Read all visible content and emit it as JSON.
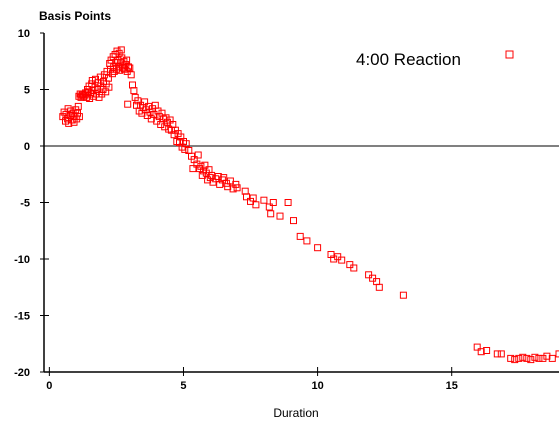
{
  "chart_data": {
    "type": "scatter",
    "title": "",
    "xlabel": "Duration",
    "ylabel": "Basis Points",
    "xlim": [
      -0.2,
      19
    ],
    "ylim": [
      -20,
      10
    ],
    "x_ticks": [
      0,
      5,
      10,
      15
    ],
    "y_ticks": [
      10,
      5,
      0,
      -5,
      -10,
      -15,
      -20
    ],
    "grid": false,
    "zero_line": true,
    "legend": {
      "position": "top-right",
      "entries": [
        "4:00 Reaction"
      ]
    },
    "series": [
      {
        "name": "4:00 Reaction",
        "color": "#ff0000",
        "marker": "open-square",
        "points": [
          [
            0.5,
            2.6
          ],
          [
            0.55,
            3.0
          ],
          [
            0.6,
            2.2
          ],
          [
            0.62,
            2.8
          ],
          [
            0.68,
            2.4
          ],
          [
            0.7,
            3.3
          ],
          [
            0.72,
            2.0
          ],
          [
            0.78,
            2.7
          ],
          [
            0.8,
            3.1
          ],
          [
            0.85,
            2.3
          ],
          [
            0.88,
            2.9
          ],
          [
            0.92,
            2.1
          ],
          [
            0.95,
            2.6
          ],
          [
            0.98,
            3.2
          ],
          [
            1.02,
            2.4
          ],
          [
            1.05,
            2.9
          ],
          [
            1.08,
            3.5
          ],
          [
            1.1,
            4.4
          ],
          [
            1.12,
            2.6
          ],
          [
            1.15,
            4.6
          ],
          [
            1.18,
            4.3
          ],
          [
            1.22,
            4.5
          ],
          [
            1.25,
            4.6
          ],
          [
            1.28,
            4.4
          ],
          [
            1.32,
            4.5
          ],
          [
            1.35,
            4.7
          ],
          [
            1.38,
            4.3
          ],
          [
            1.42,
            5.0
          ],
          [
            1.45,
            4.8
          ],
          [
            1.48,
            5.3
          ],
          [
            1.5,
            4.2
          ],
          [
            1.55,
            4.6
          ],
          [
            1.58,
            5.5
          ],
          [
            1.6,
            5.8
          ],
          [
            1.62,
            4.9
          ],
          [
            1.65,
            4.4
          ],
          [
            1.7,
            5.2
          ],
          [
            1.72,
            5.9
          ],
          [
            1.75,
            4.6
          ],
          [
            1.8,
            5.0
          ],
          [
            1.82,
            5.6
          ],
          [
            1.85,
            4.3
          ],
          [
            1.9,
            6.1
          ],
          [
            1.92,
            5.3
          ],
          [
            1.95,
            4.6
          ],
          [
            2.0,
            5.0
          ],
          [
            2.02,
            5.7
          ],
          [
            2.05,
            6.3
          ],
          [
            2.1,
            4.8
          ],
          [
            2.12,
            5.5
          ],
          [
            2.15,
            6.6
          ],
          [
            2.2,
            6.0
          ],
          [
            2.22,
            5.2
          ],
          [
            2.25,
            7.3
          ],
          [
            2.28,
            6.8
          ],
          [
            2.3,
            7.6
          ],
          [
            2.35,
            6.4
          ],
          [
            2.38,
            7.9
          ],
          [
            2.4,
            7.0
          ],
          [
            2.42,
            6.6
          ],
          [
            2.45,
            8.1
          ],
          [
            2.48,
            7.4
          ],
          [
            2.5,
            6.8
          ],
          [
            2.52,
            8.4
          ],
          [
            2.55,
            7.6
          ],
          [
            2.58,
            7.0
          ],
          [
            2.6,
            8.2
          ],
          [
            2.62,
            6.7
          ],
          [
            2.65,
            7.4
          ],
          [
            2.68,
            8.5
          ],
          [
            2.7,
            7.8
          ],
          [
            2.72,
            7.1
          ],
          [
            2.75,
            6.9
          ],
          [
            2.78,
            7.5
          ],
          [
            2.8,
            6.8
          ],
          [
            2.85,
            7.2
          ],
          [
            2.88,
            7.6
          ],
          [
            2.9,
            6.6
          ],
          [
            2.95,
            7.0
          ],
          [
            3.0,
            6.9
          ],
          [
            3.05,
            6.3
          ],
          [
            2.92,
            3.7
          ],
          [
            3.1,
            5.4
          ],
          [
            3.15,
            4.9
          ],
          [
            3.2,
            4.3
          ],
          [
            3.25,
            3.6
          ],
          [
            3.3,
            4.0
          ],
          [
            3.35,
            3.1
          ],
          [
            3.4,
            3.6
          ],
          [
            3.45,
            2.9
          ],
          [
            3.5,
            3.4
          ],
          [
            3.55,
            3.9
          ],
          [
            3.6,
            3.2
          ],
          [
            3.65,
            2.7
          ],
          [
            3.7,
            3.5
          ],
          [
            3.75,
            3.0
          ],
          [
            3.8,
            2.4
          ],
          [
            3.85,
            3.3
          ],
          [
            3.9,
            2.8
          ],
          [
            3.95,
            3.6
          ],
          [
            4.0,
            2.2
          ],
          [
            4.05,
            3.1
          ],
          [
            4.1,
            2.6
          ],
          [
            4.15,
            1.9
          ],
          [
            4.2,
            2.9
          ],
          [
            4.25,
            2.4
          ],
          [
            4.3,
            1.7
          ],
          [
            4.35,
            2.5
          ],
          [
            4.4,
            2.1
          ],
          [
            4.45,
            1.5
          ],
          [
            4.5,
            2.3
          ],
          [
            4.55,
            1.4
          ],
          [
            4.6,
            1.9
          ],
          [
            4.65,
            1.0
          ],
          [
            4.7,
            1.4
          ],
          [
            4.75,
            0.4
          ],
          [
            4.8,
            1.1
          ],
          [
            4.85,
            0.3
          ],
          [
            4.9,
            0.8
          ],
          [
            4.95,
            -0.1
          ],
          [
            5.0,
            0.4
          ],
          [
            5.05,
            -0.3
          ],
          [
            5.1,
            0.2
          ],
          [
            5.2,
            -0.4
          ],
          [
            5.3,
            -0.9
          ],
          [
            5.35,
            -2.0
          ],
          [
            5.4,
            -1.2
          ],
          [
            5.5,
            -1.6
          ],
          [
            5.55,
            -0.8
          ],
          [
            5.6,
            -2.0
          ],
          [
            5.65,
            -1.8
          ],
          [
            5.7,
            -2.6
          ],
          [
            5.75,
            -2.2
          ],
          [
            5.8,
            -1.7
          ],
          [
            5.85,
            -2.4
          ],
          [
            5.9,
            -3.0
          ],
          [
            5.95,
            -2.1
          ],
          [
            6.0,
            -2.8
          ],
          [
            6.05,
            -2.6
          ],
          [
            6.1,
            -3.2
          ],
          [
            6.2,
            -2.9
          ],
          [
            6.3,
            -2.7
          ],
          [
            6.35,
            -3.4
          ],
          [
            6.45,
            -3.0
          ],
          [
            6.5,
            -2.8
          ],
          [
            6.6,
            -3.3
          ],
          [
            6.65,
            -3.6
          ],
          [
            6.75,
            -3.1
          ],
          [
            6.85,
            -3.8
          ],
          [
            6.95,
            -3.4
          ],
          [
            7.0,
            -3.7
          ],
          [
            7.3,
            -4.0
          ],
          [
            7.35,
            -4.5
          ],
          [
            7.5,
            -4.9
          ],
          [
            7.6,
            -4.6
          ],
          [
            7.7,
            -5.2
          ],
          [
            8.0,
            -4.8
          ],
          [
            8.2,
            -5.4
          ],
          [
            8.25,
            -6.0
          ],
          [
            8.35,
            -5.0
          ],
          [
            8.6,
            -6.2
          ],
          [
            8.9,
            -5.0
          ],
          [
            9.1,
            -6.6
          ],
          [
            9.35,
            -8.0
          ],
          [
            9.6,
            -8.4
          ],
          [
            10.0,
            -9.0
          ],
          [
            10.5,
            -9.6
          ],
          [
            10.6,
            -10.0
          ],
          [
            10.75,
            -9.8
          ],
          [
            10.9,
            -10.1
          ],
          [
            11.2,
            -10.5
          ],
          [
            11.35,
            -10.8
          ],
          [
            11.9,
            -11.4
          ],
          [
            12.05,
            -11.7
          ],
          [
            12.2,
            -12.0
          ],
          [
            12.3,
            -12.5
          ],
          [
            13.2,
            -13.2
          ],
          [
            15.95,
            -17.8
          ],
          [
            16.1,
            -18.2
          ],
          [
            16.3,
            -18.1
          ],
          [
            16.7,
            -18.4
          ],
          [
            16.85,
            -18.4
          ],
          [
            17.2,
            -18.8
          ],
          [
            17.35,
            -18.9
          ],
          [
            17.5,
            -18.8
          ],
          [
            17.65,
            -18.7
          ],
          [
            17.8,
            -18.8
          ],
          [
            17.95,
            -18.9
          ],
          [
            18.1,
            -18.7
          ],
          [
            18.25,
            -18.8
          ],
          [
            18.4,
            -18.8
          ],
          [
            18.55,
            -18.6
          ],
          [
            18.75,
            -18.8
          ],
          [
            19.0,
            -18.4
          ]
        ]
      }
    ]
  }
}
